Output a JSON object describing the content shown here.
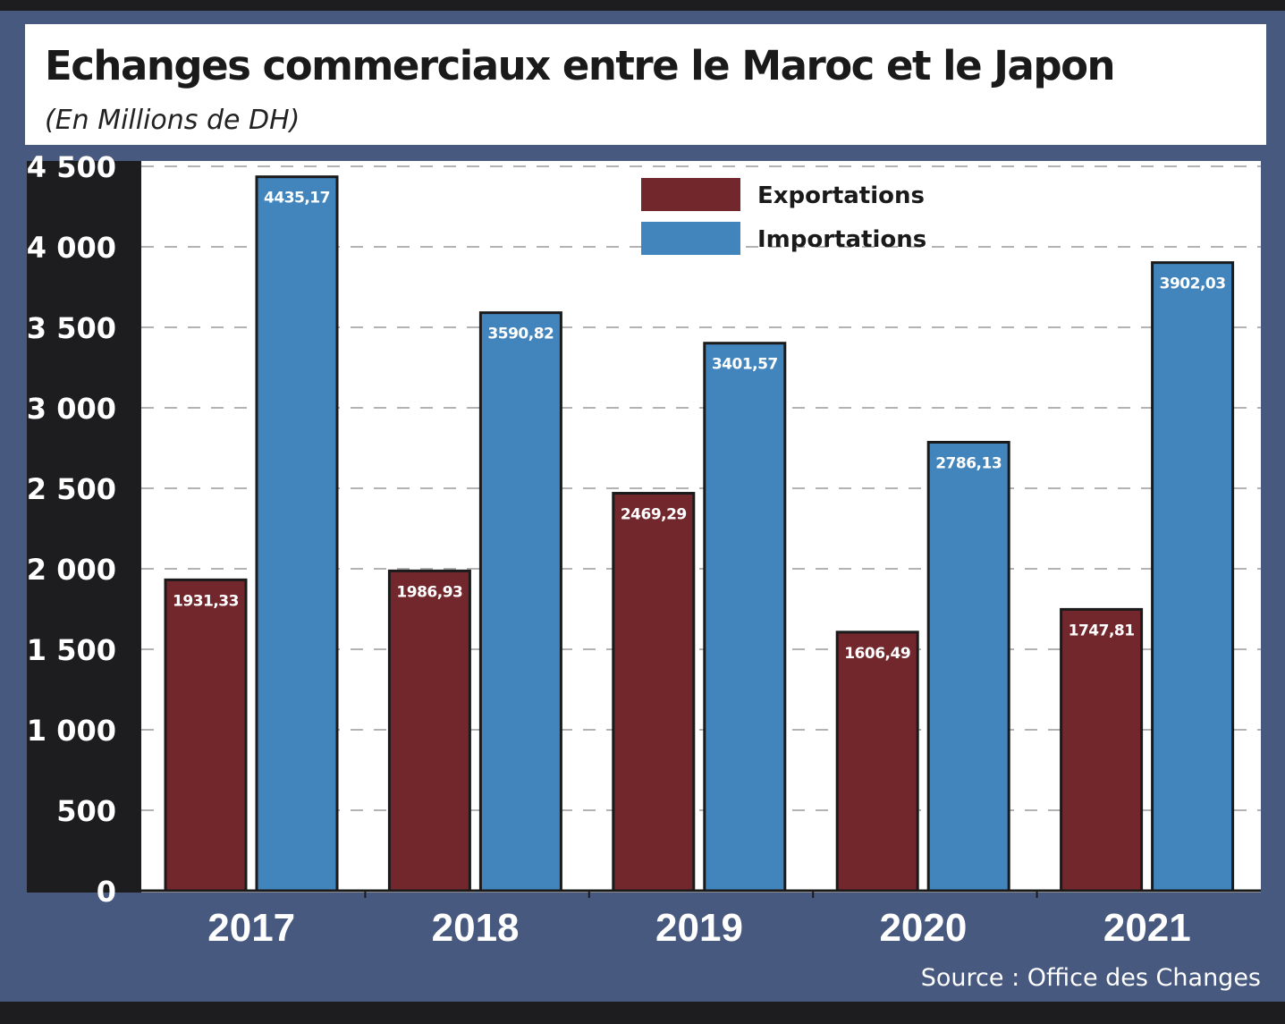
{
  "chart_data": {
    "type": "bar",
    "title": "Echanges commerciaux entre le Maroc et le Japon",
    "subtitle": "(En Millions de DH)",
    "categories": [
      "2017",
      "2018",
      "2019",
      "2020",
      "2021"
    ],
    "series": [
      {
        "name": "Exportations",
        "color": "#72272d",
        "values": [
          1931.33,
          1986.93,
          2469.29,
          1606.49,
          1747.81
        ],
        "labels": [
          "1931,33",
          "1986,93",
          "2469,29",
          "1606,49",
          "1747,81"
        ]
      },
      {
        "name": "Importations",
        "color": "#4285bd",
        "values": [
          4435.17,
          3590.82,
          3401.57,
          2786.13,
          3902.03
        ],
        "labels": [
          "4435,17",
          "3590,82",
          "3401,57",
          "2786,13",
          "3902,03"
        ]
      }
    ],
    "ylim": [
      0,
      4500
    ],
    "yticks": [
      0,
      500,
      1000,
      1500,
      2000,
      2500,
      3000,
      3500,
      4000,
      4500
    ],
    "ytick_labels": [
      "0",
      "500",
      "1 000",
      "1 500",
      "2 000",
      "2 500",
      "3 000",
      "3 500",
      "4 000",
      "4 500"
    ],
    "grid": true,
    "legend": "top-right",
    "source": "Source : Office des Changes"
  }
}
